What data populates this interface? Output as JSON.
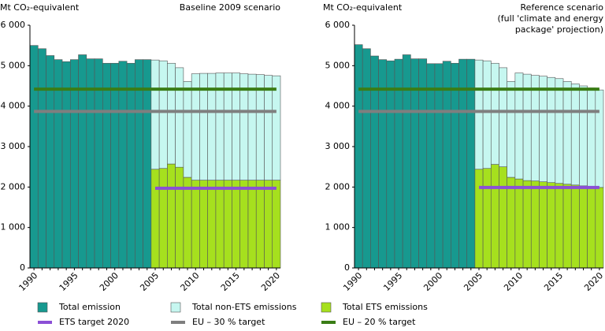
{
  "chart_data": [
    {
      "type": "bar",
      "title": "Mt CO₂-equivalent",
      "subtitle": [
        "Baseline 2009 scenario"
      ],
      "categories": [
        "1990",
        null,
        null,
        null,
        null,
        "1995",
        null,
        null,
        null,
        null,
        "2000",
        null,
        null,
        null,
        null,
        "2005",
        null,
        null,
        null,
        null,
        "2010",
        null,
        null,
        null,
        null,
        "2015",
        null,
        null,
        null,
        null,
        "2020"
      ],
      "ylim": [
        0,
        6000
      ],
      "yticks": [
        0,
        {
          "value": 1000,
          "label": "1 000"
        },
        {
          "value": 2000,
          "label": "2 000"
        },
        {
          "value": 3000,
          "label": "3 000"
        },
        {
          "value": 4000,
          "label": "4 000"
        },
        {
          "value": 5000,
          "label": "5 000"
        },
        {
          "value": 6000,
          "label": "6 000"
        }
      ],
      "series": [
        {
          "name": "Total emission",
          "color": "#17998f",
          "type": "bar",
          "values": [
            5500,
            5420,
            5250,
            5150,
            5100,
            5150,
            5270,
            5170,
            5170,
            5060,
            5060,
            5110,
            5060,
            5150,
            5150,
            null,
            null,
            null,
            null,
            null,
            null,
            null,
            null,
            null,
            null,
            null,
            null,
            null,
            null,
            null,
            null
          ]
        },
        {
          "name": "Total non-ETS emissions",
          "color": "#c6f7f0",
          "type": "bar",
          "values": [
            null,
            null,
            null,
            null,
            null,
            null,
            null,
            null,
            null,
            null,
            null,
            null,
            null,
            null,
            null,
            2700,
            2660,
            2490,
            2460,
            2370,
            2630,
            2640,
            2640,
            2650,
            2650,
            2650,
            2630,
            2620,
            2610,
            2590,
            2580
          ]
        },
        {
          "name": "Total ETS emissions",
          "color": "#a6e01e",
          "type": "bar",
          "values": [
            null,
            null,
            null,
            null,
            null,
            null,
            null,
            null,
            null,
            null,
            null,
            null,
            null,
            null,
            null,
            2440,
            2460,
            2570,
            2490,
            2240,
            2170,
            2170,
            2170,
            2170,
            2170,
            2170,
            2170,
            2170,
            2170,
            2170,
            2170
          ]
        },
        {
          "name": "ETS target 2020",
          "color": "#8b4fd6",
          "type": "line",
          "values": [
            null,
            null,
            null,
            null,
            null,
            null,
            null,
            null,
            null,
            null,
            null,
            null,
            null,
            null,
            null,
            1970,
            1970,
            1970,
            1970,
            1970,
            1970,
            1970,
            1970,
            1970,
            1970,
            1970,
            1970,
            1970,
            1970,
            1970,
            1970
          ]
        },
        {
          "name": "EU – 30 % target",
          "color": "#7f7f7f",
          "type": "line",
          "values": [
            3870,
            3870,
            3870,
            3870,
            3870,
            3870,
            3870,
            3870,
            3870,
            3870,
            3870,
            3870,
            3870,
            3870,
            3870,
            3870,
            3870,
            3870,
            3870,
            3870,
            3870,
            3870,
            3870,
            3870,
            3870,
            3870,
            3870,
            3870,
            3870,
            3870,
            3870
          ]
        },
        {
          "name": "EU – 20 % target",
          "color": "#3a7d16",
          "type": "line",
          "values": [
            4420,
            4420,
            4420,
            4420,
            4420,
            4420,
            4420,
            4420,
            4420,
            4420,
            4420,
            4420,
            4420,
            4420,
            4420,
            4420,
            4420,
            4420,
            4420,
            4420,
            4420,
            4420,
            4420,
            4420,
            4420,
            4420,
            4420,
            4420,
            4420,
            4420,
            4420
          ]
        }
      ]
    },
    {
      "type": "bar",
      "title": "Mt CO₂-equivalent",
      "subtitle": [
        "Reference scenario",
        "(full 'climate and energy",
        "package' projection)"
      ],
      "categories": [
        "1990",
        null,
        null,
        null,
        null,
        "1995",
        null,
        null,
        null,
        null,
        "2000",
        null,
        null,
        null,
        null,
        "2005",
        null,
        null,
        null,
        null,
        "2010",
        null,
        null,
        null,
        null,
        "2015",
        null,
        null,
        null,
        null,
        "2020"
      ],
      "ylim": [
        0,
        6000
      ],
      "yticks": [
        0,
        {
          "value": 1000,
          "label": "1 000"
        },
        {
          "value": 2000,
          "label": "2 000"
        },
        {
          "value": 3000,
          "label": "3 000"
        },
        {
          "value": 4000,
          "label": "4 000"
        },
        {
          "value": 5000,
          "label": "5 000"
        },
        {
          "value": 6000,
          "label": "6 000"
        }
      ],
      "series": [
        {
          "name": "Total emission",
          "color": "#17998f",
          "type": "bar",
          "values": [
            5520,
            5420,
            5240,
            5150,
            5120,
            5160,
            5270,
            5170,
            5170,
            5050,
            5050,
            5110,
            5060,
            5160,
            5160,
            null,
            null,
            null,
            null,
            null,
            null,
            null,
            null,
            null,
            null,
            null,
            null,
            null,
            null,
            null,
            null
          ]
        },
        {
          "name": "Total non-ETS emissions",
          "color": "#c6f7f0",
          "type": "bar",
          "values": [
            null,
            null,
            null,
            null,
            null,
            null,
            null,
            null,
            null,
            null,
            null,
            null,
            null,
            null,
            null,
            2700,
            2660,
            2500,
            2450,
            2370,
            2620,
            2630,
            2610,
            2610,
            2600,
            2590,
            2540,
            2500,
            2470,
            2440,
            2410
          ]
        },
        {
          "name": "Total ETS emissions",
          "color": "#a6e01e",
          "type": "bar",
          "values": [
            null,
            null,
            null,
            null,
            null,
            null,
            null,
            null,
            null,
            null,
            null,
            null,
            null,
            null,
            null,
            2440,
            2460,
            2560,
            2500,
            2240,
            2200,
            2160,
            2150,
            2130,
            2110,
            2090,
            2070,
            2050,
            2030,
            2010,
            1990
          ]
        },
        {
          "name": "ETS target 2020",
          "color": "#8b4fd6",
          "type": "line",
          "values": [
            null,
            null,
            null,
            null,
            null,
            null,
            null,
            null,
            null,
            null,
            null,
            null,
            null,
            null,
            null,
            1990,
            1990,
            1990,
            1990,
            1990,
            1990,
            1990,
            1990,
            1990,
            1990,
            1990,
            1990,
            1990,
            1990,
            1990,
            1990
          ]
        },
        {
          "name": "EU – 30 % target",
          "color": "#7f7f7f",
          "type": "line",
          "values": [
            3870,
            3870,
            3870,
            3870,
            3870,
            3870,
            3870,
            3870,
            3870,
            3870,
            3870,
            3870,
            3870,
            3870,
            3870,
            3870,
            3870,
            3870,
            3870,
            3870,
            3870,
            3870,
            3870,
            3870,
            3870,
            3870,
            3870,
            3870,
            3870,
            3870,
            3870
          ]
        },
        {
          "name": "EU – 20 % target",
          "color": "#3a7d16",
          "type": "line",
          "values": [
            4420,
            4420,
            4420,
            4420,
            4420,
            4420,
            4420,
            4420,
            4420,
            4420,
            4420,
            4420,
            4420,
            4420,
            4420,
            4420,
            4420,
            4420,
            4420,
            4420,
            4420,
            4420,
            4420,
            4420,
            4420,
            4420,
            4420,
            4420,
            4420,
            4420,
            4420
          ]
        }
      ]
    }
  ]
}
